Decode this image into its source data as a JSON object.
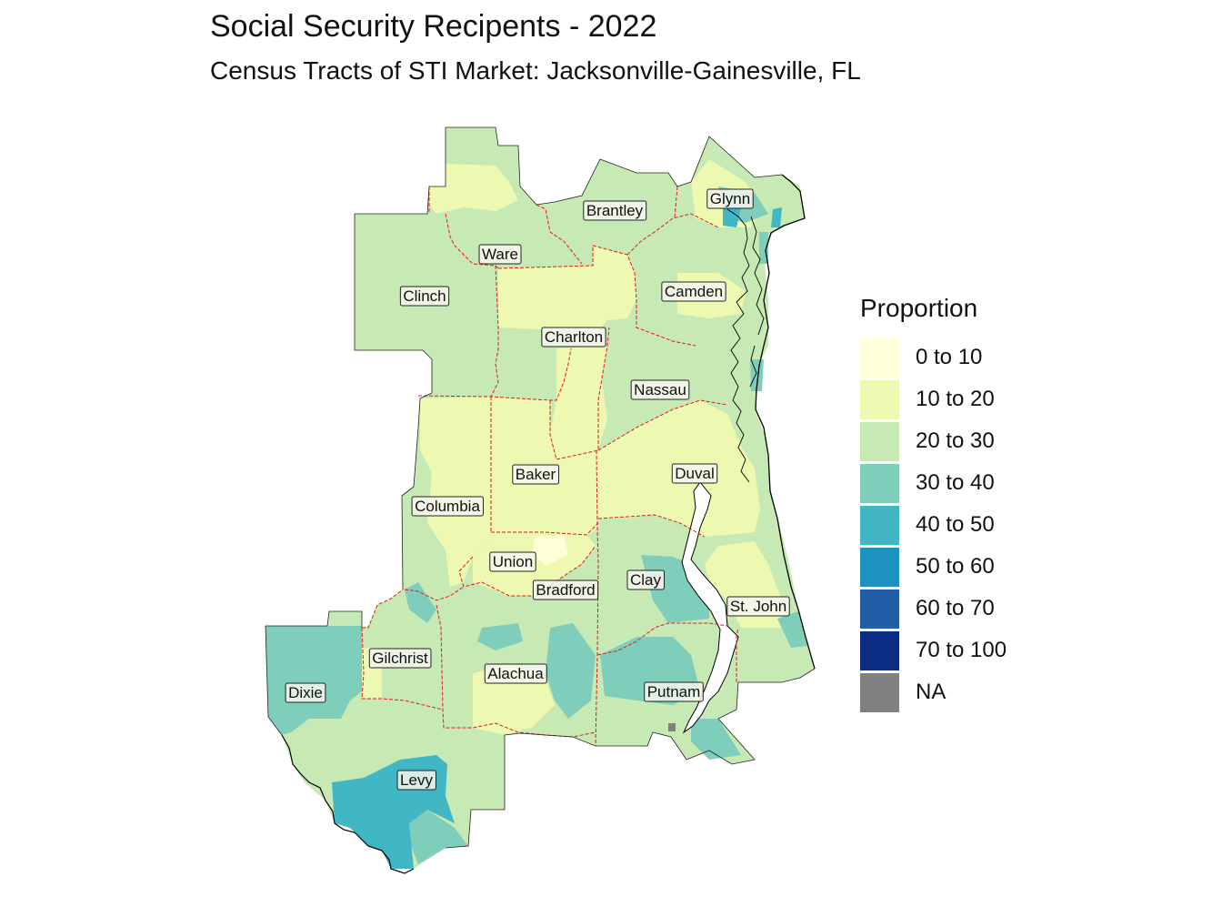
{
  "title": "Social Security Recipents - 2022",
  "subtitle": "Census Tracts of STI Market: Jacksonville-Gainesville, FL",
  "legend": {
    "title": "Proportion",
    "items": [
      {
        "label": "0 to 10",
        "color": "#ffffd9"
      },
      {
        "label": "10 to 20",
        "color": "#edf8b1"
      },
      {
        "label": "20 to 30",
        "color": "#c7e9b4"
      },
      {
        "label": "30 to 40",
        "color": "#7fcdbb"
      },
      {
        "label": "40 to 50",
        "color": "#41b6c4"
      },
      {
        "label": "50 to 60",
        "color": "#1d91c0"
      },
      {
        "label": "60 to 70",
        "color": "#225ea8"
      },
      {
        "label": "70 to 100",
        "color": "#0c2c84"
      },
      {
        "label": "NA",
        "color": "#808080"
      }
    ]
  },
  "map": {
    "boundary_color": "#e31a1c",
    "counties": [
      {
        "name": "Glynn"
      },
      {
        "name": "Brantley"
      },
      {
        "name": "Ware"
      },
      {
        "name": "Clinch"
      },
      {
        "name": "Camden"
      },
      {
        "name": "Charlton"
      },
      {
        "name": "Nassau"
      },
      {
        "name": "Baker"
      },
      {
        "name": "Duval"
      },
      {
        "name": "Columbia"
      },
      {
        "name": "Union"
      },
      {
        "name": "Bradford"
      },
      {
        "name": "Clay"
      },
      {
        "name": "St. John"
      },
      {
        "name": "Gilchrist"
      },
      {
        "name": "Alachua"
      },
      {
        "name": "Dixie"
      },
      {
        "name": "Putnam"
      },
      {
        "name": "Levy"
      }
    ]
  }
}
